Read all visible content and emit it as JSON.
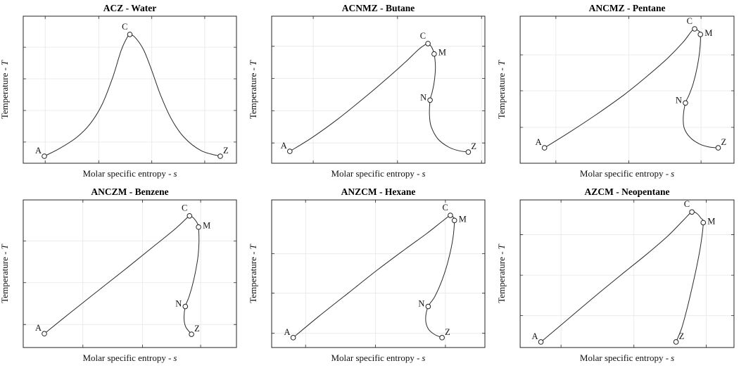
{
  "colors": {
    "background": "#ffffff",
    "curve": "#2b2b2b",
    "grid": "#e7e7e7",
    "axis": "#262626",
    "text": "#111111"
  },
  "marker_label_offsets": {
    "A": [
      -4,
      -4,
      "end"
    ],
    "C": [
      -3,
      -7,
      "end"
    ],
    "M": [
      6,
      2,
      "start"
    ],
    "N": [
      -5,
      0,
      "end"
    ],
    "Z": [
      4,
      -4,
      "start"
    ]
  },
  "chart_data": [
    {
      "type": "line",
      "title": "ACZ - Water",
      "point_sequence": "ACZ",
      "substance": "Water",
      "xlabel": {
        "text": "Molar specific entropy -",
        "var": "s"
      },
      "ylabel": {
        "text": "Temperature -",
        "var": "T"
      },
      "x_ticks": [
        0.103,
        0.354,
        0.603,
        0.851
      ],
      "y_ticks": [
        0.144,
        0.359,
        0.574,
        0.789
      ],
      "curve": [
        [
          0.099,
          0.048
        ],
        [
          0.17,
          0.1
        ],
        [
          0.25,
          0.175
        ],
        [
          0.315,
          0.27
        ],
        [
          0.37,
          0.4
        ],
        [
          0.42,
          0.585
        ],
        [
          0.46,
          0.77
        ],
        [
          0.49,
          0.862
        ],
        [
          0.5,
          0.876
        ],
        [
          0.525,
          0.855
        ],
        [
          0.565,
          0.77
        ],
        [
          0.603,
          0.63
        ],
        [
          0.645,
          0.46
        ],
        [
          0.695,
          0.3
        ],
        [
          0.755,
          0.175
        ],
        [
          0.835,
          0.085
        ],
        [
          0.924,
          0.048
        ]
      ],
      "points": [
        {
          "label": "A",
          "x": 0.099,
          "y": 0.048
        },
        {
          "label": "C",
          "x": 0.5,
          "y": 0.876
        },
        {
          "label": "Z",
          "x": 0.924,
          "y": 0.048
        }
      ]
    },
    {
      "type": "line",
      "title": "ACNMZ - Butane",
      "point_sequence": "ACNMZ",
      "substance": "Butane",
      "xlabel": {
        "text": "Molar specific entropy -",
        "var": "s"
      },
      "ylabel": {
        "text": "Temperature -",
        "var": "T"
      },
      "x_ticks": [
        0.195,
        0.59,
        0.984
      ],
      "y_ticks": [
        0.138,
        0.357,
        0.576,
        0.795
      ],
      "curve": [
        [
          0.085,
          0.081
        ],
        [
          0.19,
          0.175
        ],
        [
          0.31,
          0.3
        ],
        [
          0.43,
          0.44
        ],
        [
          0.54,
          0.575
        ],
        [
          0.625,
          0.685
        ],
        [
          0.69,
          0.775
        ],
        [
          0.722,
          0.808
        ],
        [
          0.733,
          0.814
        ],
        [
          0.75,
          0.79
        ],
        [
          0.762,
          0.743
        ],
        [
          0.768,
          0.65
        ],
        [
          0.762,
          0.55
        ],
        [
          0.752,
          0.48
        ],
        [
          0.743,
          0.429
        ],
        [
          0.74,
          0.33
        ],
        [
          0.748,
          0.25
        ],
        [
          0.78,
          0.165
        ],
        [
          0.83,
          0.11
        ],
        [
          0.878,
          0.085
        ],
        [
          0.922,
          0.076
        ]
      ],
      "points": [
        {
          "label": "A",
          "x": 0.085,
          "y": 0.081
        },
        {
          "label": "C",
          "x": 0.733,
          "y": 0.814
        },
        {
          "label": "M",
          "x": 0.762,
          "y": 0.743
        },
        {
          "label": "N",
          "x": 0.743,
          "y": 0.429
        },
        {
          "label": "Z",
          "x": 0.922,
          "y": 0.076
        }
      ]
    },
    {
      "type": "line",
      "title": "ANCMZ - Pentane",
      "point_sequence": "ANCMZ",
      "substance": "Pentane",
      "xlabel": {
        "text": "Molar specific entropy -",
        "var": "s"
      },
      "ylabel": {
        "text": "Temperature -",
        "var": "T"
      },
      "x_ticks": [
        0.167,
        0.508,
        0.846
      ],
      "y_ticks": [
        0.244,
        0.493,
        0.737
      ],
      "curve": [
        [
          0.114,
          0.105
        ],
        [
          0.23,
          0.21
        ],
        [
          0.36,
          0.335
        ],
        [
          0.49,
          0.47
        ],
        [
          0.6,
          0.6
        ],
        [
          0.69,
          0.715
        ],
        [
          0.76,
          0.82
        ],
        [
          0.8,
          0.895
        ],
        [
          0.816,
          0.914
        ],
        [
          0.834,
          0.9
        ],
        [
          0.843,
          0.876
        ],
        [
          0.84,
          0.77
        ],
        [
          0.828,
          0.655
        ],
        [
          0.81,
          0.545
        ],
        [
          0.79,
          0.465
        ],
        [
          0.773,
          0.41
        ],
        [
          0.763,
          0.32
        ],
        [
          0.767,
          0.24
        ],
        [
          0.795,
          0.175
        ],
        [
          0.84,
          0.13
        ],
        [
          0.885,
          0.11
        ],
        [
          0.926,
          0.105
        ]
      ],
      "points": [
        {
          "label": "A",
          "x": 0.114,
          "y": 0.105
        },
        {
          "label": "C",
          "x": 0.816,
          "y": 0.914
        },
        {
          "label": "M",
          "x": 0.843,
          "y": 0.876
        },
        {
          "label": "N",
          "x": 0.773,
          "y": 0.41
        },
        {
          "label": "Z",
          "x": 0.926,
          "y": 0.105
        }
      ]
    },
    {
      "type": "line",
      "title": "ANCZM - Benzene",
      "point_sequence": "ANCZM",
      "substance": "Benzene",
      "xlabel": {
        "text": "Molar specific entropy -",
        "var": "s"
      },
      "ylabel": {
        "text": "Temperature -",
        "var": "T"
      },
      "x_ticks": [
        0.28,
        0.559,
        0.832
      ],
      "y_ticks": [
        0.156,
        0.439,
        0.722
      ],
      "curve": [
        [
          0.099,
          0.094
        ],
        [
          0.22,
          0.235
        ],
        [
          0.36,
          0.395
        ],
        [
          0.5,
          0.555
        ],
        [
          0.62,
          0.695
        ],
        [
          0.71,
          0.8
        ],
        [
          0.762,
          0.87
        ],
        [
          0.78,
          0.892
        ],
        [
          0.8,
          0.875
        ],
        [
          0.817,
          0.84
        ],
        [
          0.822,
          0.816
        ],
        [
          0.824,
          0.71
        ],
        [
          0.818,
          0.6
        ],
        [
          0.8,
          0.46
        ],
        [
          0.778,
          0.345
        ],
        [
          0.76,
          0.278
        ],
        [
          0.754,
          0.2
        ],
        [
          0.762,
          0.14
        ],
        [
          0.789,
          0.09
        ]
      ],
      "points": [
        {
          "label": "A",
          "x": 0.099,
          "y": 0.094
        },
        {
          "label": "C",
          "x": 0.78,
          "y": 0.892
        },
        {
          "label": "M",
          "x": 0.822,
          "y": 0.816
        },
        {
          "label": "N",
          "x": 0.76,
          "y": 0.278
        },
        {
          "label": "Z",
          "x": 0.789,
          "y": 0.09
        }
      ]
    },
    {
      "type": "line",
      "title": "ANZCM - Hexane",
      "point_sequence": "ANZCM",
      "substance": "Hexane",
      "xlabel": {
        "text": "Molar specific entropy -",
        "var": "s"
      },
      "ylabel": {
        "text": "Temperature -",
        "var": "T"
      },
      "x_ticks": [
        0.159,
        0.487,
        0.815
      ],
      "y_ticks": [
        0.096,
        0.368,
        0.636
      ],
      "curve": [
        [
          0.101,
          0.067
        ],
        [
          0.22,
          0.21
        ],
        [
          0.36,
          0.37
        ],
        [
          0.5,
          0.53
        ],
        [
          0.625,
          0.665
        ],
        [
          0.725,
          0.77
        ],
        [
          0.8,
          0.855
        ],
        [
          0.838,
          0.895
        ],
        [
          0.852,
          0.882
        ],
        [
          0.857,
          0.861
        ],
        [
          0.85,
          0.74
        ],
        [
          0.83,
          0.6
        ],
        [
          0.8,
          0.46
        ],
        [
          0.765,
          0.345
        ],
        [
          0.734,
          0.278
        ],
        [
          0.722,
          0.195
        ],
        [
          0.733,
          0.13
        ],
        [
          0.762,
          0.09
        ],
        [
          0.799,
          0.067
        ]
      ],
      "points": [
        {
          "label": "A",
          "x": 0.101,
          "y": 0.067
        },
        {
          "label": "C",
          "x": 0.838,
          "y": 0.895
        },
        {
          "label": "M",
          "x": 0.857,
          "y": 0.861
        },
        {
          "label": "N",
          "x": 0.734,
          "y": 0.278
        },
        {
          "label": "Z",
          "x": 0.799,
          "y": 0.067
        }
      ]
    },
    {
      "type": "line",
      "title": "AZCM - Neopentane",
      "point_sequence": "AZCM",
      "substance": "Neopentane",
      "xlabel": {
        "text": "Molar specific entropy -",
        "var": "s"
      },
      "ylabel": {
        "text": "Temperature -",
        "var": "T"
      },
      "x_ticks": [
        0.191,
        0.532,
        0.87
      ],
      "y_ticks": [
        0.216,
        0.49,
        0.764
      ],
      "curve": [
        [
          0.097,
          0.038
        ],
        [
          0.21,
          0.175
        ],
        [
          0.34,
          0.335
        ],
        [
          0.47,
          0.49
        ],
        [
          0.59,
          0.63
        ],
        [
          0.69,
          0.755
        ],
        [
          0.765,
          0.865
        ],
        [
          0.803,
          0.918
        ],
        [
          0.826,
          0.908
        ],
        [
          0.845,
          0.877
        ],
        [
          0.856,
          0.846
        ],
        [
          0.845,
          0.7
        ],
        [
          0.825,
          0.545
        ],
        [
          0.803,
          0.4
        ],
        [
          0.78,
          0.26
        ],
        [
          0.755,
          0.13
        ],
        [
          0.729,
          0.038
        ]
      ],
      "points": [
        {
          "label": "A",
          "x": 0.097,
          "y": 0.038
        },
        {
          "label": "C",
          "x": 0.803,
          "y": 0.918
        },
        {
          "label": "M",
          "x": 0.856,
          "y": 0.846
        },
        {
          "label": "Z",
          "x": 0.729,
          "y": 0.038
        }
      ]
    }
  ]
}
